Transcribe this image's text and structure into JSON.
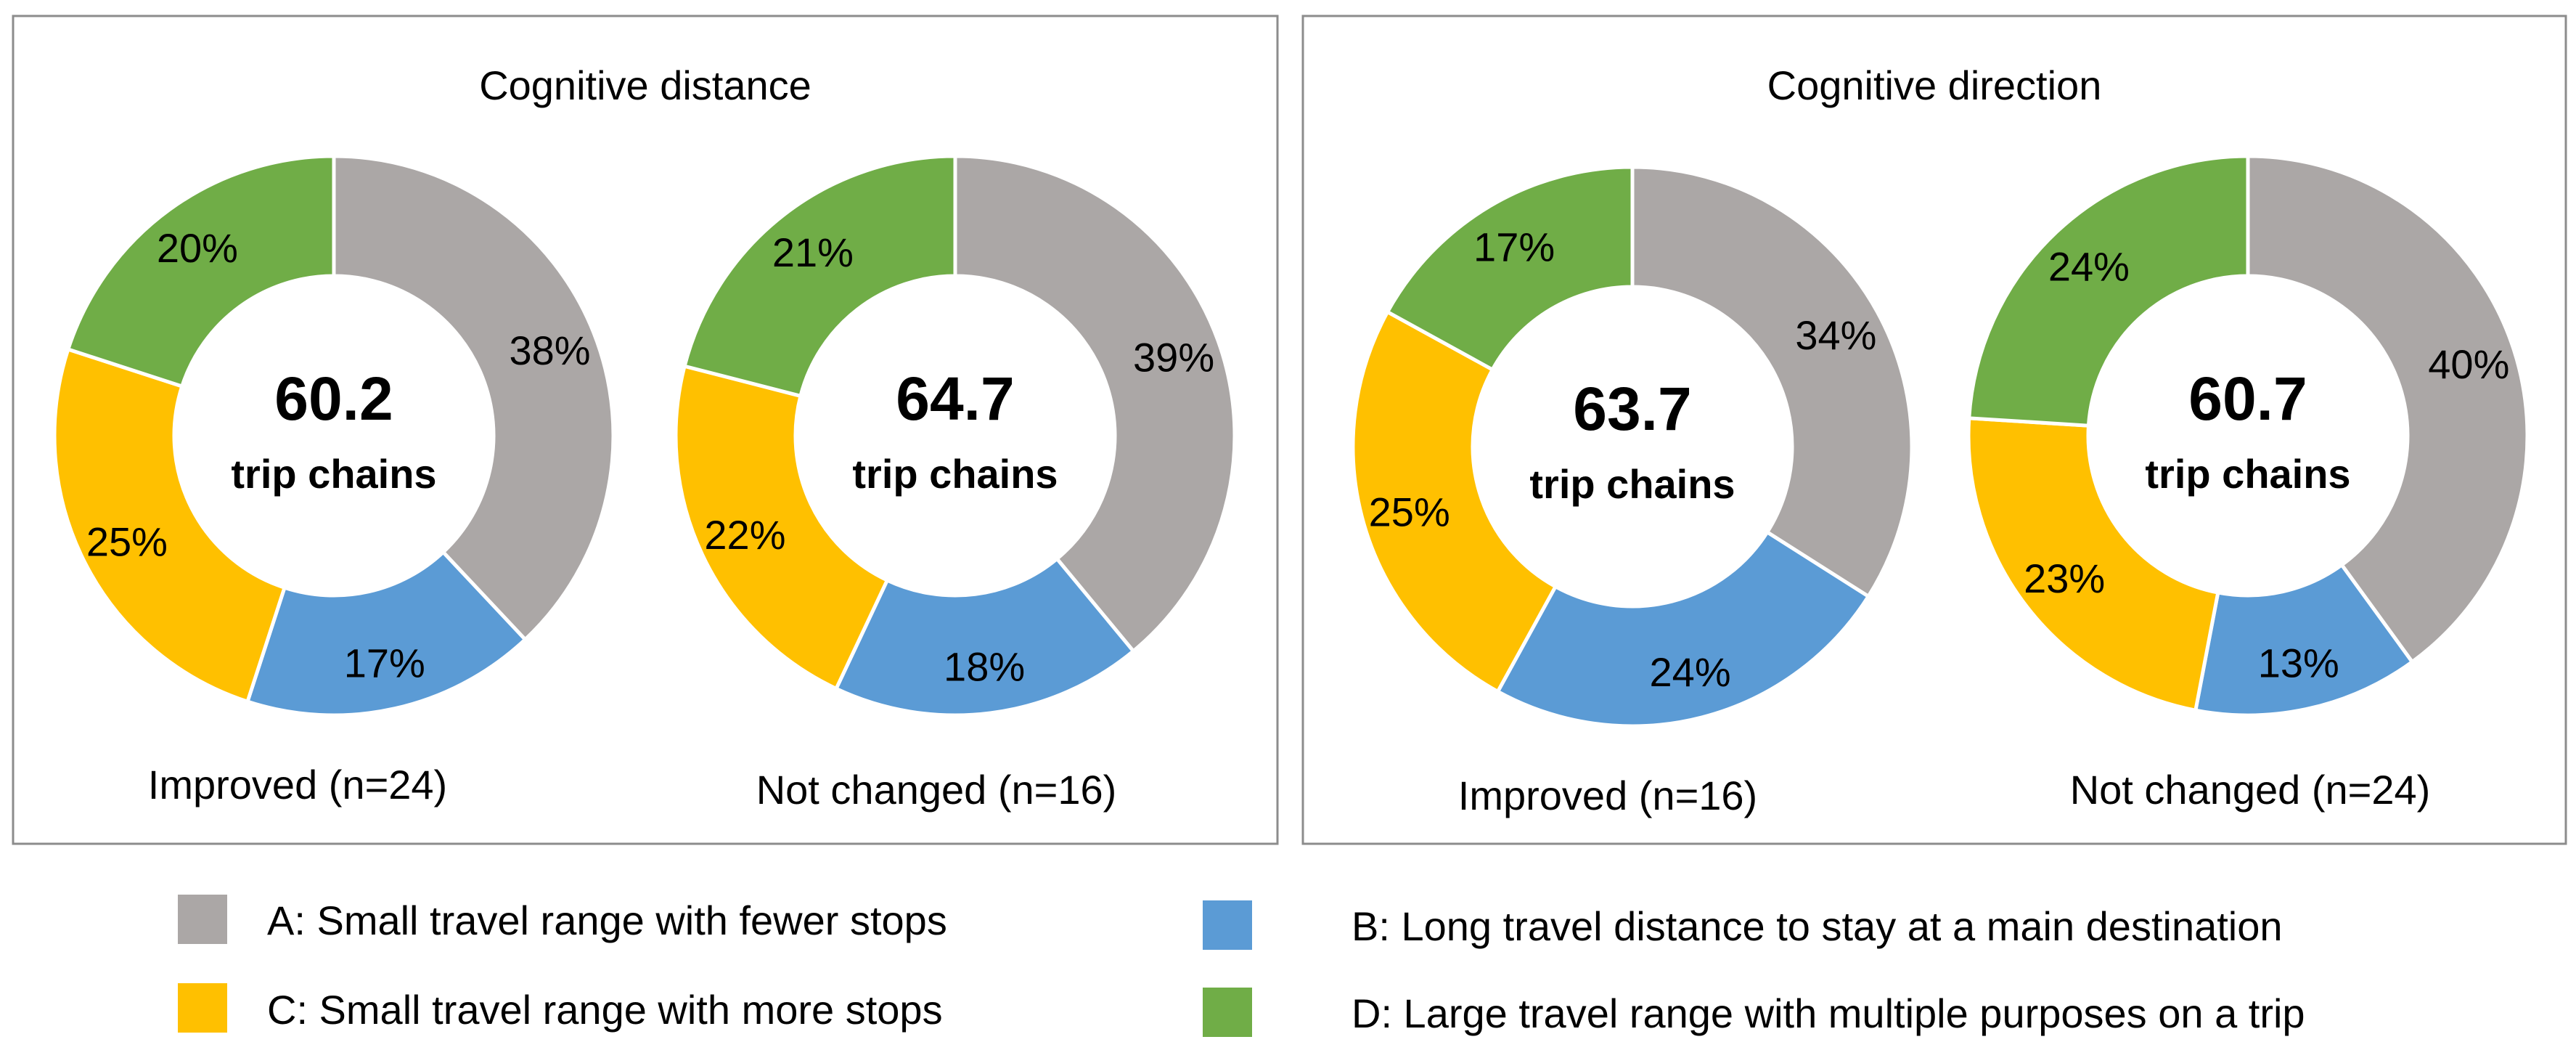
{
  "colors": {
    "A": "#aba7a6",
    "B": "#5b9bd5",
    "C": "#ffc000",
    "D": "#70ad47",
    "frame": "#8c8c8c",
    "text": "#000000"
  },
  "chart_data": [
    {
      "type": "pie",
      "title": "Cognitive distance",
      "charts": [
        {
          "center_value": "60.2",
          "center_unit": "trip chains",
          "label": "Improved (n=24)",
          "categories": [
            "A",
            "B",
            "C",
            "D"
          ],
          "values": [
            38,
            17,
            25,
            20
          ],
          "value_labels": [
            "38%",
            "17%",
            "25%",
            "20%"
          ]
        },
        {
          "center_value": "64.7",
          "center_unit": "trip chains",
          "label": "Not changed (n=16)",
          "categories": [
            "A",
            "B",
            "C",
            "D"
          ],
          "values": [
            39,
            18,
            22,
            21
          ],
          "value_labels": [
            "39%",
            "18%",
            "22%",
            "21%"
          ]
        }
      ]
    },
    {
      "type": "pie",
      "title": "Cognitive direction",
      "charts": [
        {
          "center_value": "63.7",
          "center_unit": "trip chains",
          "label": "Improved (n=16)",
          "categories": [
            "A",
            "B",
            "C",
            "D"
          ],
          "values": [
            34,
            24,
            25,
            17
          ],
          "value_labels": [
            "34%",
            "24%",
            "25%",
            "17%"
          ]
        },
        {
          "center_value": "60.7",
          "center_unit": "trip chains",
          "label": "Not changed (n=24)",
          "categories": [
            "A",
            "B",
            "C",
            "D"
          ],
          "values": [
            40,
            13,
            23,
            24
          ],
          "value_labels": [
            "40%",
            "13%",
            "23%",
            "24%"
          ]
        }
      ]
    }
  ],
  "legend": [
    {
      "key": "A",
      "label": "A: Small travel range with fewer stops"
    },
    {
      "key": "B",
      "label": "B: Long travel distance to stay at a main destination"
    },
    {
      "key": "C",
      "label": "C: Small travel range with more stops"
    },
    {
      "key": "D",
      "label": "D: Large travel range with multiple purposes on a trip"
    }
  ]
}
